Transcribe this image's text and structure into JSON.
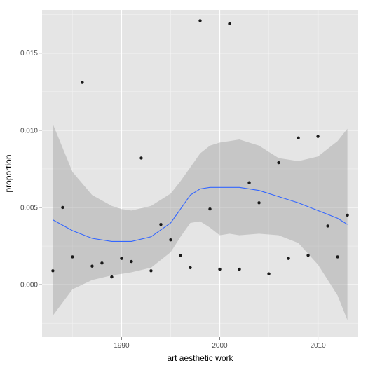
{
  "chart_data": {
    "type": "scatter",
    "title": "",
    "xlabel": "art aesthetic work",
    "ylabel": "proportion",
    "xlim": [
      1981.9,
      2014.1
    ],
    "ylim": [
      -0.0034,
      0.0178
    ],
    "x_ticks": [
      1990,
      2000,
      2010
    ],
    "x_tick_labels": [
      "1990",
      "2000",
      "2010"
    ],
    "y_ticks": [
      0.0,
      0.005,
      0.01,
      0.015
    ],
    "y_tick_labels": [
      "0.000",
      "0.005",
      "0.010",
      "0.015"
    ],
    "grid": true,
    "legend": "none",
    "colors": {
      "panel_background": "#e5e5e5",
      "grid_major": "#ffffff",
      "grid_minor": "#f2f2f2",
      "points": "#1a1a1a",
      "smooth_line": "#3366ff",
      "confidence_band": "#999999"
    },
    "points": {
      "x": [
        1983,
        1984,
        1985,
        1986,
        1987,
        1988,
        1989,
        1990,
        1991,
        1992,
        1993,
        1994,
        1995,
        1996,
        1997,
        1998,
        1999,
        2000,
        2001,
        2002,
        2003,
        2004,
        2005,
        2006,
        2007,
        2008,
        2009,
        2010,
        2011,
        2012,
        2013
      ],
      "y": [
        0.0009,
        0.005,
        0.0018,
        0.0131,
        0.0012,
        0.0014,
        0.0005,
        0.0017,
        0.0015,
        0.0082,
        0.0009,
        0.0039,
        0.0029,
        0.0019,
        0.0011,
        0.0171,
        0.0049,
        0.001,
        0.0169,
        0.001,
        0.0066,
        0.0053,
        0.0007,
        0.0079,
        0.0017,
        0.0095,
        0.0019,
        0.0096,
        0.0038,
        0.0018,
        0.0045
      ]
    },
    "smooth": {
      "x": [
        1983,
        1985,
        1987,
        1989,
        1990,
        1991,
        1993,
        1995,
        1996,
        1997,
        1998,
        1999,
        2000,
        2001,
        2002,
        2004,
        2006,
        2008,
        2010,
        2012,
        2013
      ],
      "y": [
        0.0042,
        0.0035,
        0.003,
        0.0028,
        0.0028,
        0.0028,
        0.0031,
        0.004,
        0.0049,
        0.0058,
        0.0062,
        0.0063,
        0.0063,
        0.0063,
        0.0063,
        0.0061,
        0.0057,
        0.0053,
        0.0048,
        0.0043,
        0.0039
      ],
      "upper": [
        0.0104,
        0.0073,
        0.0058,
        0.0051,
        0.0049,
        0.0048,
        0.0051,
        0.0059,
        0.0067,
        0.0076,
        0.0085,
        0.009,
        0.0092,
        0.0093,
        0.0094,
        0.009,
        0.0082,
        0.008,
        0.0083,
        0.0093,
        0.0101
      ],
      "lower": [
        -0.002,
        -0.0003,
        0.0003,
        0.0006,
        0.0007,
        0.0008,
        0.0011,
        0.0021,
        0.0031,
        0.004,
        0.0041,
        0.0037,
        0.0032,
        0.0033,
        0.0032,
        0.0033,
        0.0032,
        0.0027,
        0.0013,
        -0.0007,
        -0.0023
      ]
    }
  }
}
